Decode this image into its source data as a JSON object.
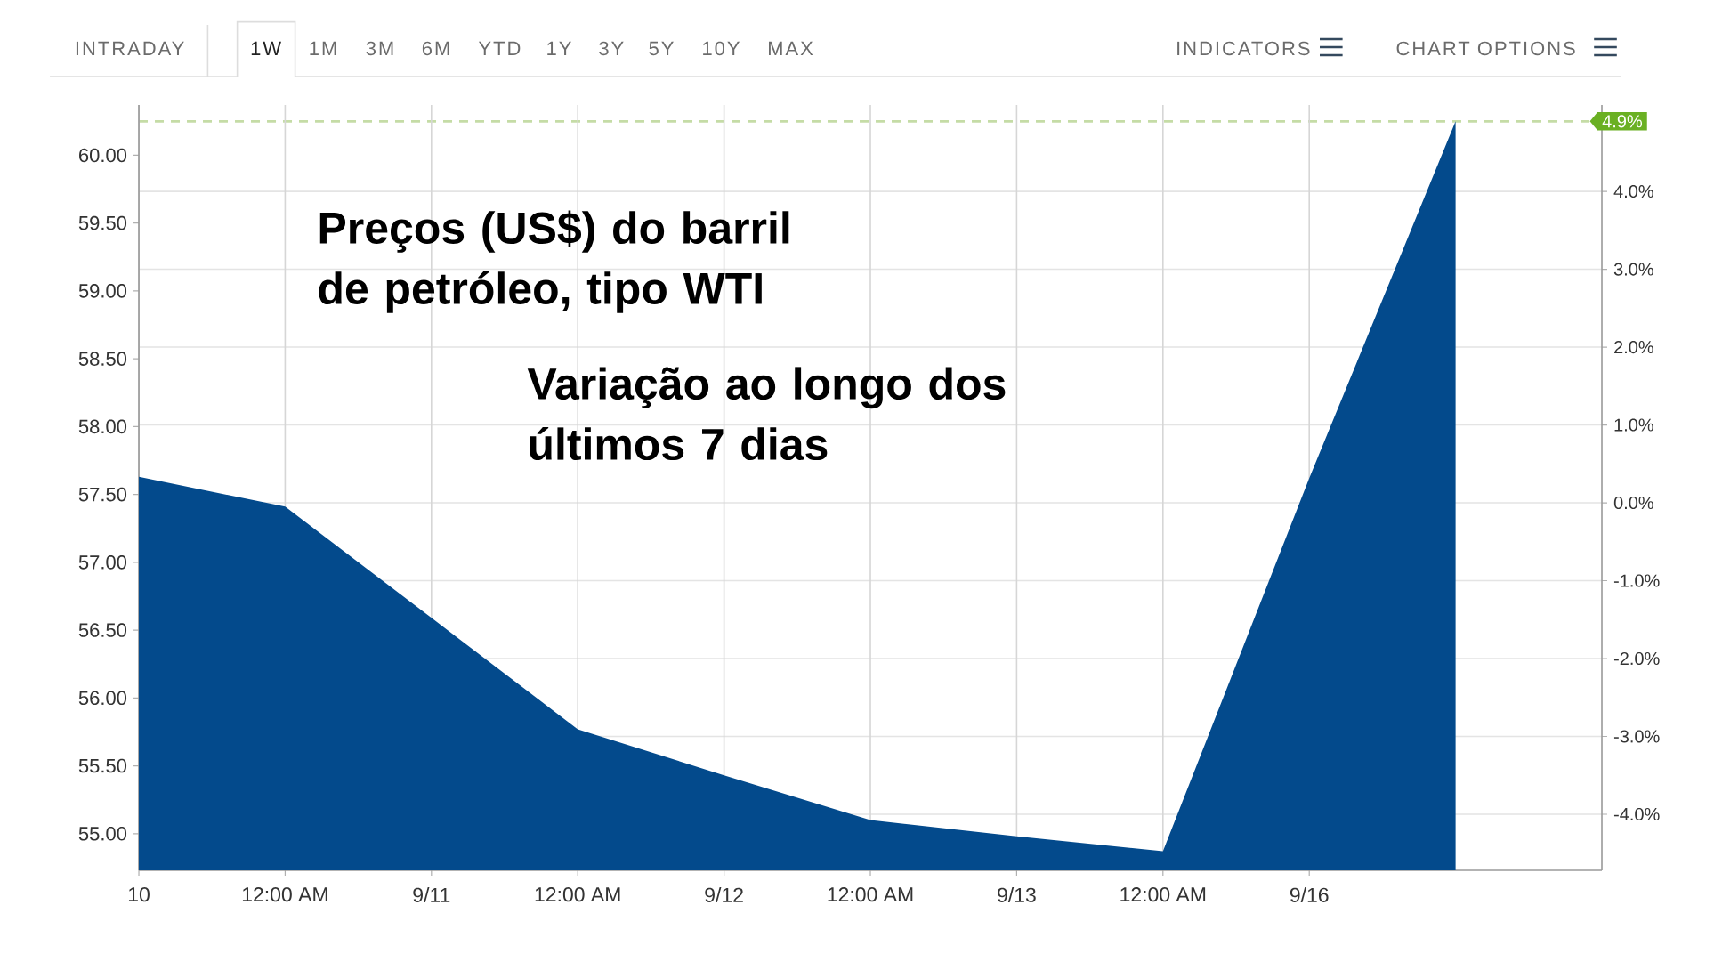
{
  "chart_data": {
    "type": "area",
    "title": "Preços (US$) do barril de petróleo, tipo WTI",
    "subtitle": "Variação ao longo dos últimos 7 dias",
    "categories": [
      "10",
      "12:00 AM",
      "9/11",
      "12:00 AM",
      "9/12",
      "12:00 AM",
      "9/13",
      "12:00 AM",
      "9/16",
      null,
      null
    ],
    "values": [
      57.63,
      57.41,
      56.59,
      55.77,
      55.43,
      55.1,
      54.98,
      54.87,
      57.62,
      60.25,
      null
    ],
    "color": "#034a8c",
    "ylim": [
      54.73,
      60.37
    ],
    "yticks": [
      {
        "value": 55,
        "label": "55.00"
      },
      {
        "value": 55.5,
        "label": "55.50"
      },
      {
        "value": 56,
        "label": "56.00"
      },
      {
        "value": 56.5,
        "label": "56.50"
      },
      {
        "value": 57,
        "label": "57.00"
      },
      {
        "value": 57.5,
        "label": "57.50"
      },
      {
        "value": 58,
        "label": "58.00"
      },
      {
        "value": 58.5,
        "label": "58.50"
      },
      {
        "value": 59,
        "label": "59.00"
      },
      {
        "value": 59.5,
        "label": "59.50"
      },
      {
        "value": 60,
        "label": "60.00"
      }
    ],
    "y2lim": [
      -4.72,
      5.11
    ],
    "y2ticks": [
      {
        "value": -4,
        "label": "-4.0%"
      },
      {
        "value": -3,
        "label": "-3.0%"
      },
      {
        "value": -2,
        "label": "-2.0%"
      },
      {
        "value": -1,
        "label": "-1.0%"
      },
      {
        "value": 0,
        "label": "0.0%"
      },
      {
        "value": 1,
        "label": "1.0%"
      },
      {
        "value": 2,
        "label": "2.0%"
      },
      {
        "value": 3,
        "label": "3.0%"
      },
      {
        "value": 4,
        "label": "4.0%"
      }
    ],
    "ref_lines": [
      {
        "axis": "y2",
        "value": 4.9,
        "label": "4.9%",
        "color": "#c5dca6",
        "line_style": "dashed"
      }
    ],
    "grid": true,
    "annotations": [
      "INTRADAY",
      "1W",
      "1M",
      "3M",
      "6M",
      "YTD",
      "1Y",
      "3Y",
      "5Y",
      "10Y",
      "MAX",
      "INDICATORS",
      "CHART OPTIONS"
    ]
  }
}
